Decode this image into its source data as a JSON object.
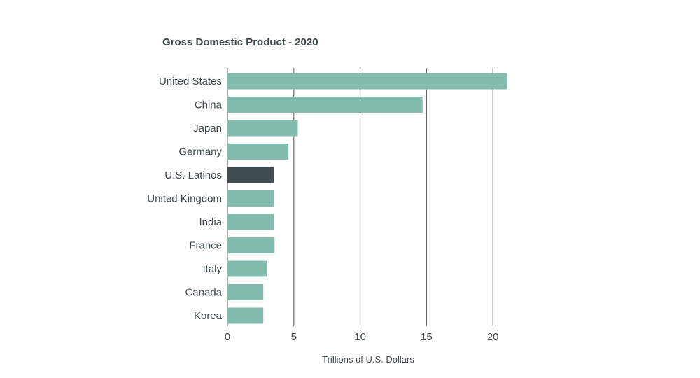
{
  "chart_data": {
    "type": "bar",
    "orientation": "horizontal",
    "title": "Gross Domestic Product - 2020",
    "xlabel": "Trillions of U.S. Dollars",
    "ylabel": "",
    "xlim": [
      0,
      21.5
    ],
    "xticks": [
      0,
      5,
      10,
      15,
      20
    ],
    "grid": "vertical",
    "categories": [
      "United States",
      "China",
      "Japan",
      "Germany",
      "U.S. Latinos",
      "United Kingdom",
      "India",
      "France",
      "Italy",
      "Canada",
      "Korea"
    ],
    "values": [
      21.1,
      14.7,
      5.3,
      4.6,
      3.5,
      3.5,
      3.5,
      3.55,
      3.0,
      2.7,
      2.7
    ],
    "highlight": "U.S. Latinos",
    "colors": {
      "bar": "#82bcae",
      "highlight": "#3f4d50",
      "grid": "#555555",
      "text": "#3d4a4d"
    }
  }
}
